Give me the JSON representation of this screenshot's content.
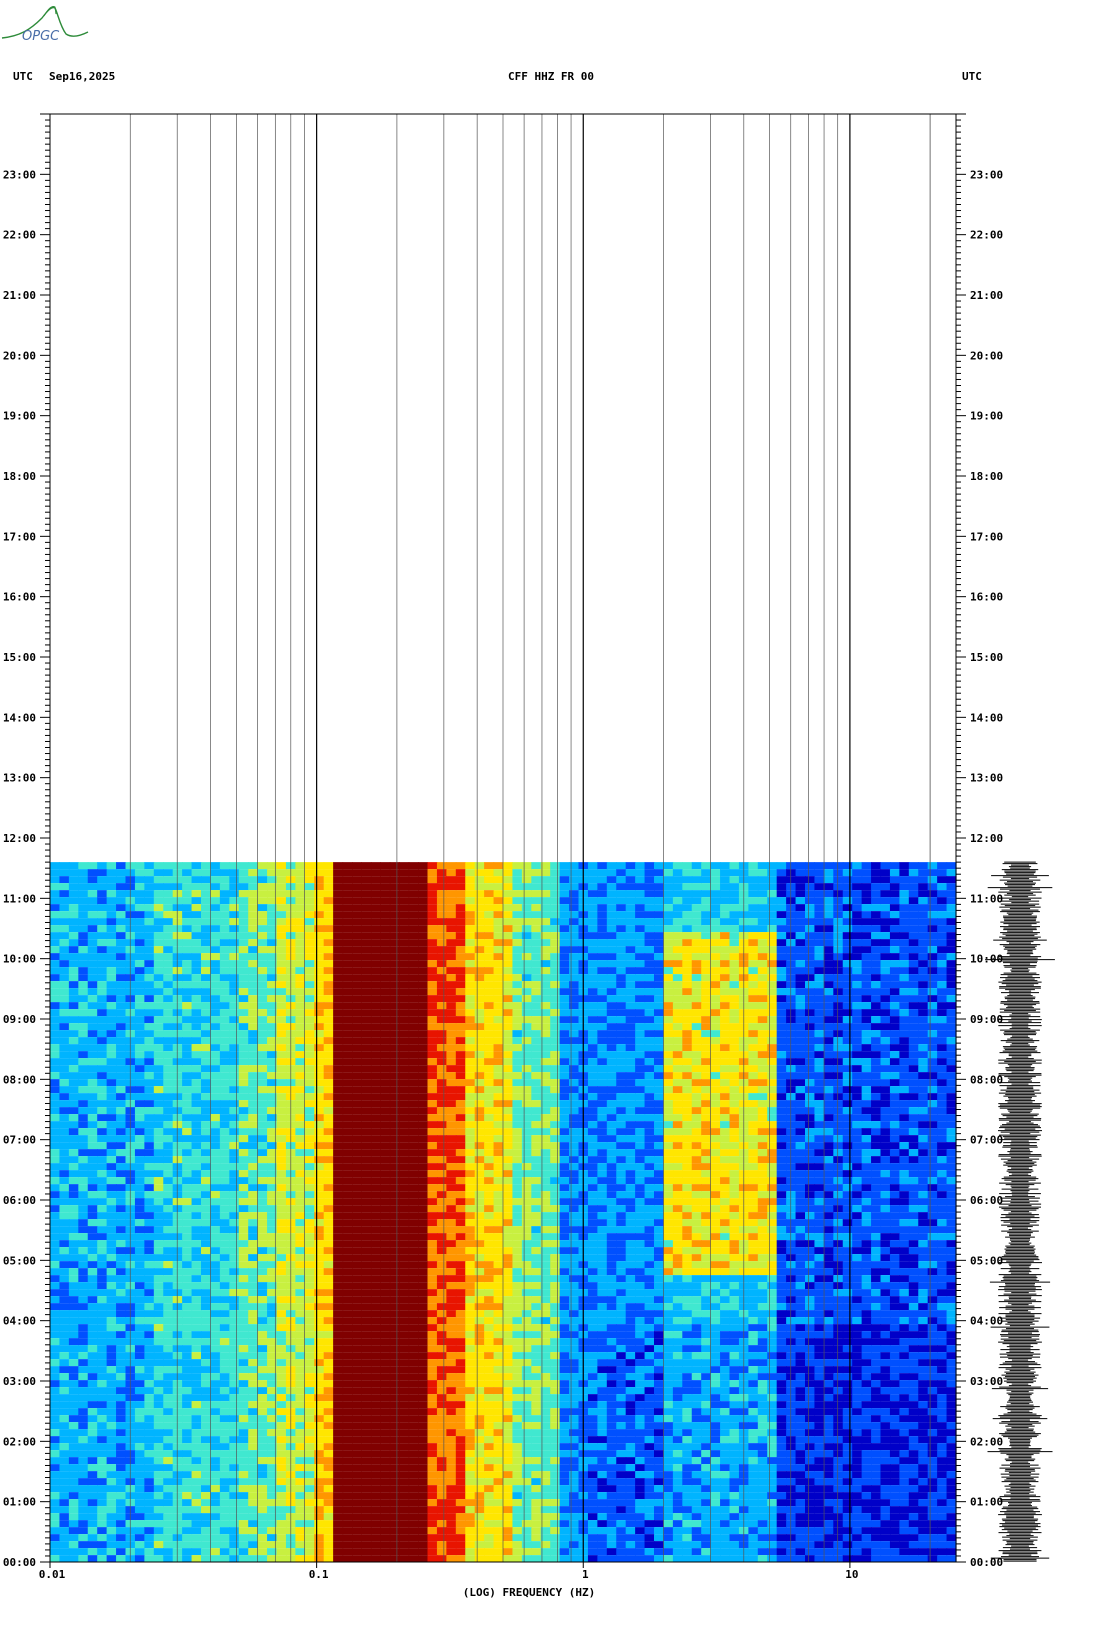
{
  "header": {
    "left_tz": "UTC",
    "date": "Sep16,2025",
    "station": "CFF HHZ FR 00",
    "right_tz": "UTC"
  },
  "logo": {
    "text": "OPGC",
    "color": "#2e8b3a"
  },
  "chart_data": {
    "type": "heatmap",
    "title": "CFF HHZ FR 00",
    "xlabel": "(LOG) FREQUENCY (HZ)",
    "ylabel": "",
    "x_scale": "log",
    "xlim": [
      0.01,
      25
    ],
    "x_ticks": [
      {
        "value": 0.01,
        "label": "0.01"
      },
      {
        "value": 0.1,
        "label": "0.1"
      },
      {
        "value": 1,
        "label": "1"
      },
      {
        "value": 10,
        "label": "10"
      }
    ],
    "ylim_hours": [
      0,
      24
    ],
    "y_ticks": [
      "00:00",
      "01:00",
      "02:00",
      "03:00",
      "04:00",
      "05:00",
      "06:00",
      "07:00",
      "08:00",
      "09:00",
      "10:00",
      "11:00",
      "12:00",
      "13:00",
      "14:00",
      "15:00",
      "16:00",
      "17:00",
      "18:00",
      "19:00",
      "20:00",
      "21:00",
      "22:00",
      "23:00"
    ],
    "data_end_hour": 11.6,
    "colormap": [
      "#0000c8",
      "#0050ff",
      "#00b4ff",
      "#40e8d0",
      "#c8f040",
      "#ffe600",
      "#ff9600",
      "#e81400",
      "#800000"
    ],
    "spectral_profile": [
      {
        "f_from": 0.01,
        "f_to": 0.024,
        "level": 0.25
      },
      {
        "f_from": 0.024,
        "f_to": 0.05,
        "level": 0.34
      },
      {
        "f_from": 0.05,
        "f_to": 0.07,
        "level": 0.4
      },
      {
        "f_from": 0.07,
        "f_to": 0.1,
        "level": 0.5
      },
      {
        "f_from": 0.1,
        "f_to": 0.12,
        "level": 0.66
      },
      {
        "f_from": 0.12,
        "f_to": 0.27,
        "level": 1.0
      },
      {
        "f_from": 0.27,
        "f_to": 0.35,
        "level": 0.82
      },
      {
        "f_from": 0.35,
        "f_to": 0.55,
        "level": 0.62
      },
      {
        "f_from": 0.55,
        "f_to": 0.8,
        "level": 0.42
      },
      {
        "f_from": 0.8,
        "f_to": 2.0,
        "level": 0.2
      },
      {
        "f_from": 2.0,
        "f_to": 5.5,
        "level": 0.3
      },
      {
        "f_from": 5.5,
        "f_to": 25,
        "level": 0.12
      }
    ],
    "grid": true,
    "legend": "none",
    "waveform_trace": true
  }
}
